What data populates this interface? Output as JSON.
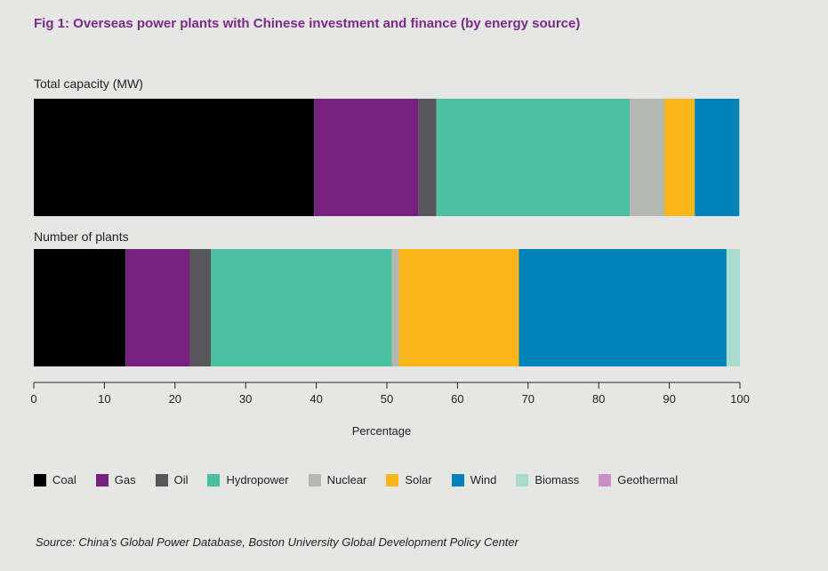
{
  "title": "Fig 1: Overseas power plants with Chinese investment and finance (by energy source)",
  "source": "Source: China's Global Power Database, Boston University Global Development Policy Center",
  "chart_data": {
    "type": "bar",
    "orientation": "horizontal",
    "stacked": true,
    "categories": [
      "Total capacity (MW)",
      "Number of plants"
    ],
    "xlabel": "Percentage",
    "xlim": [
      0,
      100
    ],
    "xticks": [
      0,
      10,
      20,
      30,
      40,
      50,
      60,
      70,
      80,
      90,
      100
    ],
    "grid": false,
    "legend_position": "bottom",
    "series": [
      {
        "name": "Coal",
        "color": "#000000",
        "values": [
          39.7,
          13.0
        ]
      },
      {
        "name": "Gas",
        "color": "#77217f",
        "values": [
          14.8,
          9.1
        ]
      },
      {
        "name": "Oil",
        "color": "#58585a",
        "values": [
          2.5,
          3.0
        ]
      },
      {
        "name": "Hydropower",
        "color": "#4bbfa1",
        "values": [
          27.4,
          25.6
        ]
      },
      {
        "name": "Nuclear",
        "color": "#b4b8b1",
        "values": [
          4.9,
          1.0
        ]
      },
      {
        "name": "Solar",
        "color": "#fbb61b",
        "values": [
          4.3,
          17.0
        ]
      },
      {
        "name": "Wind",
        "color": "#0083b9",
        "values": [
          6.3,
          29.4
        ]
      },
      {
        "name": "Biomass",
        "color": "#a9dccc",
        "values": [
          0.1,
          1.9
        ]
      },
      {
        "name": "Geothermal",
        "color": "#cc8ec7",
        "values": [
          0.0,
          0.0
        ]
      }
    ]
  }
}
